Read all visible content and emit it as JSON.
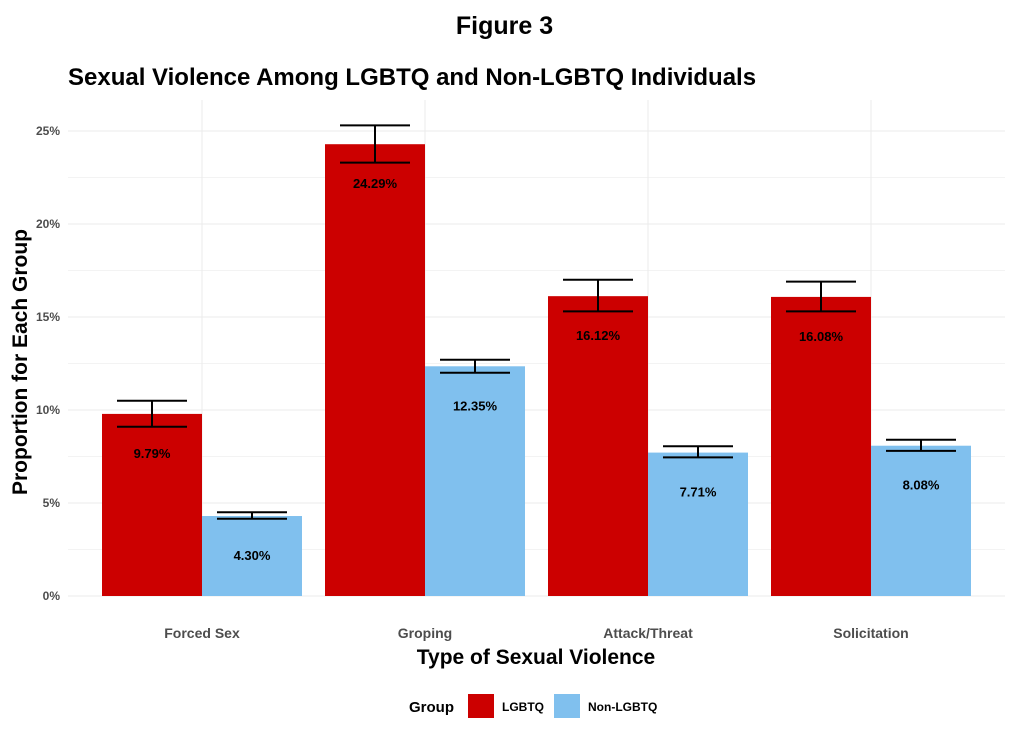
{
  "figure_label": "Figure 3",
  "chart_data": {
    "type": "bar",
    "title": "Sexual Violence Among LGBTQ and Non-LGBTQ Individuals",
    "xlabel": "Type of Sexual Violence",
    "ylabel": "Proportion for Each Group",
    "categories": [
      "Forced Sex",
      "Groping",
      "Attack/Threat",
      "Solicitation"
    ],
    "ylim": [
      0,
      26.5
    ],
    "yticks": [
      0,
      5,
      10,
      15,
      20,
      25
    ],
    "ytick_labels": [
      "0%",
      "5%",
      "10%",
      "15%",
      "20%",
      "25%"
    ],
    "grid": true,
    "legend": {
      "title": "Group",
      "position": "bottom"
    },
    "series": [
      {
        "name": "LGBTQ",
        "color": "#cc0000",
        "values": [
          9.79,
          24.29,
          16.12,
          16.08
        ],
        "labels": [
          "9.79%",
          "24.29%",
          "16.12%",
          "16.08%"
        ],
        "error_low": [
          9.1,
          23.3,
          15.3,
          15.3
        ],
        "error_high": [
          10.5,
          25.3,
          17.0,
          16.9
        ]
      },
      {
        "name": "Non-LGBTQ",
        "color": "#80c0ee",
        "values": [
          4.3,
          12.35,
          7.71,
          8.08
        ],
        "labels": [
          "4.30%",
          "12.35%",
          "7.71%",
          "8.08%"
        ],
        "error_low": [
          4.15,
          12.0,
          7.45,
          7.8
        ],
        "error_high": [
          4.5,
          12.7,
          8.05,
          8.4
        ]
      }
    ]
  }
}
